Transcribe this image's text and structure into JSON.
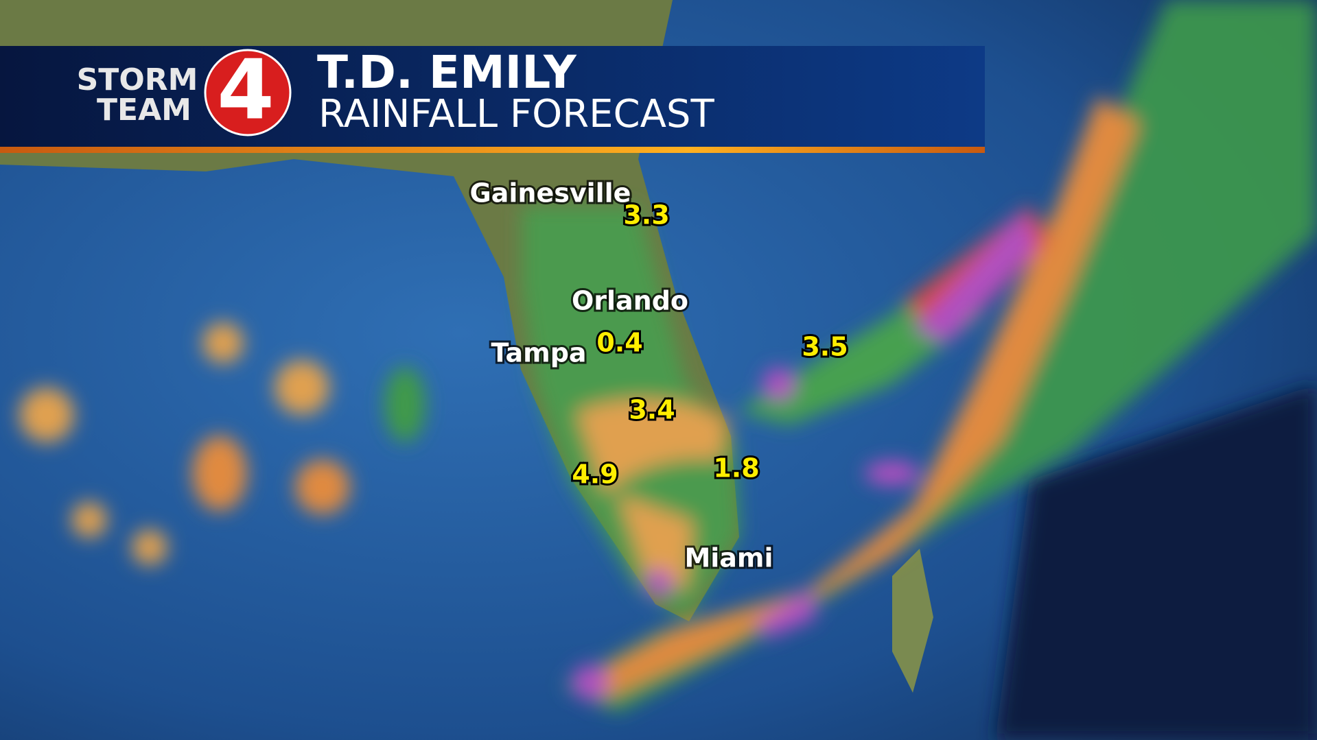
{
  "header": {
    "brand": [
      "STORM",
      "TEAM"
    ],
    "logo_number": "4",
    "title": "T.D. EMILY",
    "subtitle": "RAINFALL FORECAST"
  },
  "city_labels": [
    "Gainesville",
    "Orlando",
    "Tampa",
    "Miami"
  ],
  "rainfall_totals": [
    3.3,
    0.4,
    3.4,
    4.9,
    1.8,
    3.5
  ]
}
